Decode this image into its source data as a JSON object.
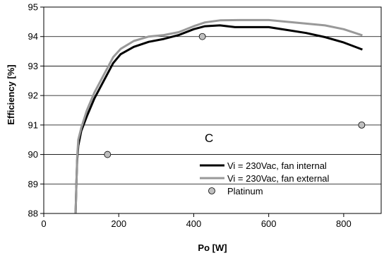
{
  "chart_data": {
    "type": "line",
    "title": "",
    "xlabel": "Po [W]",
    "ylabel": "Efficiency [%]",
    "xlim": [
      0,
      900
    ],
    "ylim": [
      88,
      95
    ],
    "x_ticks": [
      0,
      200,
      400,
      600,
      800
    ],
    "y_ticks": [
      88,
      89,
      90,
      91,
      92,
      93,
      94,
      95
    ],
    "grid": "horizontal",
    "annotation": "C",
    "legend_position": "bottom-right",
    "series": [
      {
        "name": "Vi = 230Vac, fan internal",
        "kind": "line",
        "color": "#000000",
        "points": [
          [
            85,
            88.0
          ],
          [
            87,
            89.0
          ],
          [
            89,
            89.8
          ],
          [
            92,
            90.3
          ],
          [
            100,
            90.8
          ],
          [
            115,
            91.3
          ],
          [
            135,
            91.9
          ],
          [
            160,
            92.5
          ],
          [
            185,
            93.1
          ],
          [
            205,
            93.4
          ],
          [
            240,
            93.65
          ],
          [
            280,
            93.82
          ],
          [
            320,
            93.92
          ],
          [
            360,
            94.05
          ],
          [
            400,
            94.25
          ],
          [
            430,
            94.35
          ],
          [
            470,
            94.38
          ],
          [
            510,
            94.32
          ],
          [
            560,
            94.32
          ],
          [
            600,
            94.32
          ],
          [
            650,
            94.22
          ],
          [
            700,
            94.12
          ],
          [
            750,
            93.98
          ],
          [
            800,
            93.8
          ],
          [
            850,
            93.56
          ]
        ]
      },
      {
        "name": "Vi = 230Vac, fan external",
        "kind": "line",
        "color": "#999999",
        "points": [
          [
            85,
            88.0
          ],
          [
            87,
            89.0
          ],
          [
            89,
            89.9
          ],
          [
            92,
            90.5
          ],
          [
            100,
            90.9
          ],
          [
            115,
            91.5
          ],
          [
            135,
            92.1
          ],
          [
            160,
            92.7
          ],
          [
            185,
            93.3
          ],
          [
            205,
            93.58
          ],
          [
            240,
            93.85
          ],
          [
            280,
            94.0
          ],
          [
            320,
            94.05
          ],
          [
            360,
            94.15
          ],
          [
            400,
            94.35
          ],
          [
            430,
            94.48
          ],
          [
            470,
            94.55
          ],
          [
            520,
            94.56
          ],
          [
            600,
            94.56
          ],
          [
            650,
            94.5
          ],
          [
            700,
            94.44
          ],
          [
            750,
            94.38
          ],
          [
            800,
            94.25
          ],
          [
            850,
            94.04
          ]
        ]
      },
      {
        "name": "Platinum",
        "kind": "marker",
        "color": "#bfbfbf",
        "points": [
          [
            170,
            90.0
          ],
          [
            423,
            94.0
          ],
          [
            848,
            91.0
          ]
        ]
      }
    ]
  }
}
